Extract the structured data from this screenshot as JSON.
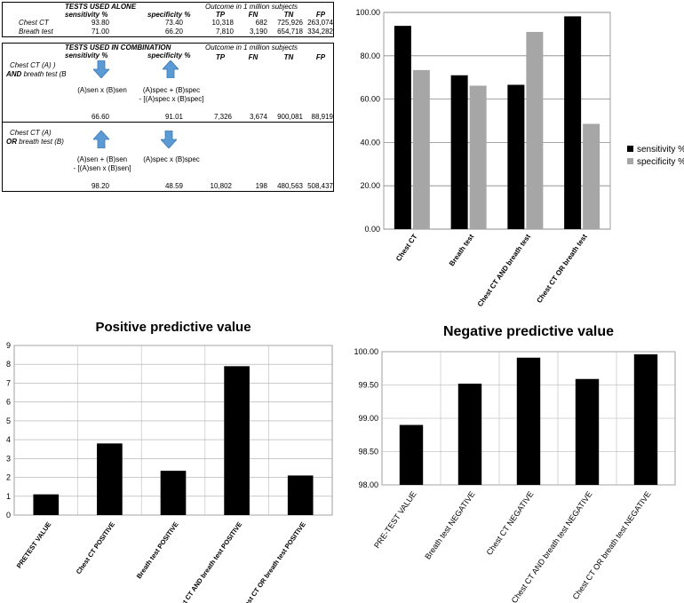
{
  "alone_table": {
    "header": "TESTS USED ALONE",
    "col_sens": "sensitivity %",
    "col_spec": "specificity %",
    "outcome": "Outcome in 1 million subjects",
    "col_tp": "TP",
    "col_fn": "FN",
    "col_tn": "TN",
    "col_fp": "FP",
    "rows": [
      {
        "name": "Chest CT",
        "sens": "93.80",
        "spec": "73.40",
        "tp": "10,318",
        "fn": "682",
        "tn": "725,926",
        "fp": "263,074"
      },
      {
        "name": "Breath test",
        "sens": "71.00",
        "spec": "66.20",
        "tp": "7,810",
        "fn": "3,190",
        "tn": "654,718",
        "fp": "334,282"
      }
    ]
  },
  "combo_table": {
    "header": "TESTS USED IN COMBINATION",
    "col_sens": "sensitivity %",
    "col_spec": "specificity %",
    "outcome": "Outcome in 1 million subjects",
    "col_tp": "TP",
    "col_fn": "FN",
    "col_tn": "TN",
    "col_fp": "FP",
    "and_row": {
      "label1": "Chest CT (A) )",
      "label2_bold": "AND",
      "label2_rest": " breath test (B",
      "sens_formula": "(A)sen x (B)sen",
      "spec_formula1": "(A)spec + (B)spec",
      "spec_formula2": "- [(A)spec x (B)spec]",
      "sens": "66.60",
      "spec": "91.01",
      "tp": "7,326",
      "fn": "3,674",
      "tn": "900,081",
      "fp": "88,919"
    },
    "or_row": {
      "label1": "Chest CT (A)",
      "label2_bold": "OR",
      "label2_rest": " breath test (B)",
      "sens_formula1": "(A)sen + (B)sen",
      "sens_formula2": "- [(A)sen x (B)sen]",
      "spec_formula": "(A)spec x (B)spec",
      "sens": "98.20",
      "spec": "48.59",
      "tp": "10,802",
      "fn": "198",
      "tn": "480,563",
      "fp": "508,437"
    }
  },
  "colors": {
    "black": "#000000",
    "gray": "#a6a6a6",
    "arrow": "#5b9bd5"
  },
  "chart_data": [
    {
      "type": "bar",
      "title": "",
      "categories": [
        "Chest CT",
        "Breath test",
        "Chest CT AND breath test",
        "Chest CT OR breath test"
      ],
      "series": [
        {
          "name": "sensitivity %",
          "values": [
            93.8,
            71.0,
            66.6,
            98.2
          ]
        },
        {
          "name": "specificity %",
          "values": [
            73.4,
            66.2,
            91.01,
            48.59
          ]
        }
      ],
      "ylim": [
        0,
        100
      ],
      "yticks": [
        "0.00",
        "20.00",
        "40.00",
        "60.00",
        "80.00",
        "100.00"
      ],
      "legend": "right"
    },
    {
      "type": "bar",
      "title": "Positive predictive value",
      "categories": [
        "PRETEST VALUE",
        "Chest CT POSITIVE",
        "Breath test POSITIVE",
        "Chest CT AND breath test POSITIVE",
        "Chest CT OR breath test POSITIVE"
      ],
      "values": [
        1.1,
        3.8,
        2.35,
        7.9,
        2.1
      ],
      "ylim": [
        0,
        9
      ],
      "yticks": [
        "0",
        "1",
        "2",
        "3",
        "4",
        "5",
        "6",
        "7",
        "8",
        "9"
      ]
    },
    {
      "type": "bar",
      "title": "Negative predictive value",
      "categories": [
        "PRE-TEST VALUE",
        "Breath test NEGATIVE",
        "Chest CT NEGATIVE",
        "Chest CT AND breath test NEGATIVE",
        "Chest CT OR breath test NEGATIVE"
      ],
      "values": [
        98.9,
        99.52,
        99.91,
        99.59,
        99.96
      ],
      "ylim": [
        98,
        100
      ],
      "yticks": [
        "98.00",
        "98.50",
        "99.00",
        "99.50",
        "100.00"
      ]
    }
  ]
}
